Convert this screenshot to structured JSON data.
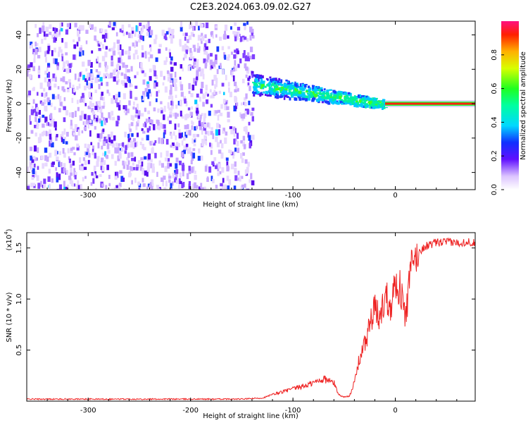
{
  "title": "C2E3.2024.063.09.02.G27",
  "chart_data": [
    {
      "type": "heatmap",
      "xlabel": "Height of straight line (km)",
      "ylabel": "Frequency (Hz)",
      "xlim": [
        -360,
        78
      ],
      "ylim": [
        -50,
        48
      ],
      "x_ticks": [
        -300,
        -200,
        -100,
        0
      ],
      "y_ticks": [
        -40,
        -20,
        0,
        20,
        40
      ],
      "colorbar": {
        "label": "Normalized spectral amplitude",
        "range": [
          0,
          1
        ],
        "ticks": [
          0.0,
          0.2,
          0.4,
          0.6,
          0.8
        ]
      },
      "regions": [
        {
          "x": [
            -360,
            -140
          ],
          "description_level": "noise",
          "amplitude": 0.1
        },
        {
          "x": [
            -140,
            -10
          ],
          "frequency_trend": [
            12,
            0
          ],
          "amplitude": 0.4
        },
        {
          "x": [
            -10,
            78
          ],
          "frequency": 0,
          "amplitude": 0.95
        }
      ]
    },
    {
      "type": "line",
      "xlabel": "Height of straight line (km)",
      "ylabel": "SNR (10 * v/v)",
      "y_multiplier": "(x10",
      "y_multiplier_exp": "4",
      "y_multiplier_close": ")",
      "xlim": [
        -360,
        78
      ],
      "ylim": [
        0,
        1.65
      ],
      "x_ticks": [
        -300,
        -200,
        -100,
        0
      ],
      "y_ticks": [
        0.5,
        1.0,
        1.5
      ],
      "y_tick_labels": [
        "0.5",
        "1.0",
        "1.5"
      ],
      "series": [
        {
          "color": "#ee2222",
          "x": [
            -360,
            -300,
            -250,
            -200,
            -150,
            -130,
            -115,
            -100,
            -85,
            -70,
            -60,
            -55,
            -50,
            -45,
            -40,
            -35,
            -30,
            -25,
            -20,
            -15,
            -10,
            -5,
            0,
            5,
            10,
            15,
            20,
            25,
            30,
            40,
            50,
            60,
            70,
            78
          ],
          "y": [
            0.02,
            0.02,
            0.02,
            0.02,
            0.02,
            0.03,
            0.08,
            0.12,
            0.16,
            0.22,
            0.18,
            0.06,
            0.04,
            0.05,
            0.18,
            0.42,
            0.55,
            0.75,
            0.9,
            0.8,
            1.05,
            0.95,
            1.15,
            1.1,
            0.8,
            1.3,
            1.4,
            1.48,
            1.52,
            1.55,
            1.56,
            1.55,
            1.56,
            1.55
          ]
        }
      ]
    }
  ]
}
